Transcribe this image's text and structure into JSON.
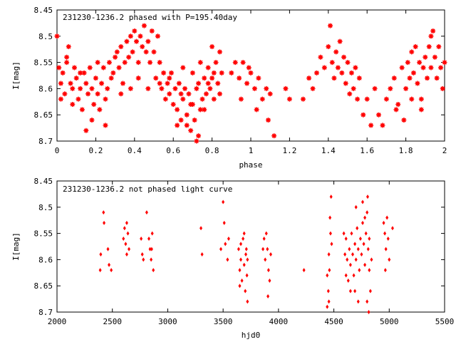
{
  "chart_data": [
    {
      "type": "scatter",
      "title": "231230-1236.2 phased with P=195.40day",
      "xlabel": "phase",
      "ylabel": "I[mag]",
      "xlim": [
        0,
        2
      ],
      "ylim": [
        8.7,
        8.45
      ],
      "y_reversed": true,
      "x_ticks": [
        0,
        0.2,
        0.4,
        0.6,
        0.8,
        1,
        1.2,
        1.4,
        1.6,
        1.8,
        2
      ],
      "x_tick_labels": [
        "0",
        "0.2",
        "0.4",
        "0.6",
        "0.8",
        "1",
        "1.2",
        "1.4",
        "1.6",
        "1.8",
        "2"
      ],
      "y_ticks": [
        8.45,
        8.5,
        8.55,
        8.6,
        8.65,
        8.7
      ],
      "y_tick_labels": [
        "8.45",
        "8.5",
        "8.55",
        "8.6",
        "8.65",
        "8.7"
      ],
      "marker": "asterisk",
      "color": "#ff0000",
      "points": [
        [
          0.0,
          8.5
        ],
        [
          0.01,
          8.56
        ],
        [
          0.02,
          8.59
        ],
        [
          0.03,
          8.57
        ],
        [
          0.04,
          8.61
        ],
        [
          0.05,
          8.55
        ],
        [
          0.06,
          8.52
        ],
        [
          0.07,
          8.59
        ],
        [
          0.08,
          8.63
        ],
        [
          0.09,
          8.56
        ],
        [
          0.1,
          8.58
        ],
        [
          0.11,
          8.62
        ],
        [
          0.12,
          8.6
        ],
        [
          0.13,
          8.64
        ],
        [
          0.14,
          8.57
        ],
        [
          0.15,
          8.59
        ],
        [
          0.16,
          8.61
        ],
        [
          0.17,
          8.56
        ],
        [
          0.18,
          8.6
        ],
        [
          0.19,
          8.63
        ],
        [
          0.2,
          8.58
        ],
        [
          0.21,
          8.61
        ],
        [
          0.22,
          8.64
        ],
        [
          0.23,
          8.59
        ],
        [
          0.24,
          8.56
        ],
        [
          0.25,
          8.62
        ],
        [
          0.26,
          8.6
        ],
        [
          0.27,
          8.55
        ],
        [
          0.28,
          8.58
        ],
        [
          0.29,
          8.57
        ],
        [
          0.15,
          8.68
        ],
        [
          0.25,
          8.67
        ],
        [
          0.05,
          8.54
        ],
        [
          0.12,
          8.57
        ],
        [
          0.02,
          8.62
        ],
        [
          0.18,
          8.66
        ],
        [
          0.08,
          8.6
        ],
        [
          0.21,
          8.55
        ],
        [
          0.3,
          8.54
        ],
        [
          0.31,
          8.53
        ],
        [
          0.32,
          8.56
        ],
        [
          0.33,
          8.52
        ],
        [
          0.34,
          8.59
        ],
        [
          0.35,
          8.55
        ],
        [
          0.36,
          8.51
        ],
        [
          0.37,
          8.54
        ],
        [
          0.38,
          8.5
        ],
        [
          0.39,
          8.53
        ],
        [
          0.4,
          8.49
        ],
        [
          0.41,
          8.51
        ],
        [
          0.42,
          8.55
        ],
        [
          0.43,
          8.5
        ],
        [
          0.44,
          8.52
        ],
        [
          0.45,
          8.48
        ],
        [
          0.46,
          8.53
        ],
        [
          0.47,
          8.51
        ],
        [
          0.48,
          8.55
        ],
        [
          0.49,
          8.49
        ],
        [
          0.5,
          8.53
        ],
        [
          0.51,
          8.58
        ],
        [
          0.52,
          8.5
        ],
        [
          0.53,
          8.55
        ],
        [
          0.54,
          8.6
        ],
        [
          0.55,
          8.57
        ],
        [
          0.56,
          8.62
        ],
        [
          0.57,
          8.59
        ],
        [
          0.58,
          8.61
        ],
        [
          0.59,
          8.57
        ],
        [
          0.33,
          8.61
        ],
        [
          0.38,
          8.6
        ],
        [
          0.42,
          8.58
        ],
        [
          0.47,
          8.6
        ],
        [
          0.53,
          8.59
        ],
        [
          0.58,
          8.58
        ],
        [
          0.6,
          8.63
        ],
        [
          0.61,
          8.6
        ],
        [
          0.62,
          8.64
        ],
        [
          0.63,
          8.59
        ],
        [
          0.64,
          8.66
        ],
        [
          0.65,
          8.62
        ],
        [
          0.66,
          8.6
        ],
        [
          0.67,
          8.65
        ],
        [
          0.68,
          8.61
        ],
        [
          0.69,
          8.68
        ],
        [
          0.7,
          8.63
        ],
        [
          0.71,
          8.66
        ],
        [
          0.72,
          8.6
        ],
        [
          0.73,
          8.69
        ],
        [
          0.74,
          8.64
        ],
        [
          0.75,
          8.62
        ],
        [
          0.76,
          8.58
        ],
        [
          0.77,
          8.61
        ],
        [
          0.78,
          8.56
        ],
        [
          0.79,
          8.6
        ],
        [
          0.8,
          8.58
        ],
        [
          0.81,
          8.62
        ],
        [
          0.82,
          8.55
        ],
        [
          0.83,
          8.59
        ],
        [
          0.84,
          8.53
        ],
        [
          0.85,
          8.57
        ],
        [
          0.65,
          8.56
        ],
        [
          0.7,
          8.57
        ],
        [
          0.72,
          8.7
        ],
        [
          0.67,
          8.67
        ],
        [
          0.74,
          8.55
        ],
        [
          0.78,
          8.59
        ],
        [
          0.8,
          8.52
        ],
        [
          0.62,
          8.67
        ],
        [
          0.76,
          8.64
        ],
        [
          0.84,
          8.61
        ],
        [
          0.69,
          8.63
        ],
        [
          0.73,
          8.59
        ],
        [
          0.81,
          8.57
        ],
        [
          0.64,
          8.61
        ],
        [
          0.9,
          8.57
        ],
        [
          0.92,
          8.55
        ],
        [
          0.94,
          8.58
        ],
        [
          0.96,
          8.55
        ],
        [
          0.98,
          8.59
        ],
        [
          1.0,
          8.57
        ],
        [
          1.02,
          8.6
        ],
        [
          1.04,
          8.58
        ],
        [
          1.06,
          8.62
        ],
        [
          1.08,
          8.6
        ],
        [
          1.1,
          8.61
        ],
        [
          0.95,
          8.62
        ],
        [
          1.03,
          8.64
        ],
        [
          1.09,
          8.66
        ],
        [
          1.12,
          8.69
        ],
        [
          1.18,
          8.6
        ],
        [
          1.2,
          8.62
        ],
        [
          0.99,
          8.56
        ],
        [
          1.27,
          8.62
        ],
        [
          1.3,
          8.58
        ],
        [
          1.32,
          8.6
        ],
        [
          1.34,
          8.57
        ],
        [
          1.36,
          8.54
        ],
        [
          1.38,
          8.56
        ],
        [
          1.4,
          8.52
        ],
        [
          1.41,
          8.48
        ],
        [
          1.42,
          8.55
        ],
        [
          1.43,
          8.58
        ],
        [
          1.44,
          8.53
        ],
        [
          1.45,
          8.56
        ],
        [
          1.46,
          8.51
        ],
        [
          1.47,
          8.57
        ],
        [
          1.48,
          8.54
        ],
        [
          1.49,
          8.59
        ],
        [
          1.5,
          8.55
        ],
        [
          1.51,
          8.61
        ],
        [
          1.52,
          8.57
        ],
        [
          1.53,
          8.6
        ],
        [
          1.54,
          8.56
        ],
        [
          1.55,
          8.62
        ],
        [
          1.56,
          8.58
        ],
        [
          1.58,
          8.65
        ],
        [
          1.6,
          8.62
        ],
        [
          1.62,
          8.67
        ],
        [
          1.64,
          8.6
        ],
        [
          1.66,
          8.65
        ],
        [
          1.68,
          8.67
        ],
        [
          1.7,
          8.62
        ],
        [
          1.72,
          8.6
        ],
        [
          1.74,
          8.58
        ],
        [
          1.76,
          8.63
        ],
        [
          1.78,
          8.56
        ],
        [
          1.79,
          8.66
        ],
        [
          1.8,
          8.6
        ],
        [
          1.81,
          8.55
        ],
        [
          1.82,
          8.58
        ],
        [
          1.83,
          8.53
        ],
        [
          1.84,
          8.57
        ],
        [
          1.85,
          8.52
        ],
        [
          1.86,
          8.59
        ],
        [
          1.87,
          8.55
        ],
        [
          1.88,
          8.62
        ],
        [
          1.89,
          8.56
        ],
        [
          1.9,
          8.54
        ],
        [
          1.91,
          8.58
        ],
        [
          1.92,
          8.52
        ],
        [
          1.93,
          8.56
        ],
        [
          1.94,
          8.49
        ],
        [
          1.95,
          8.54
        ],
        [
          1.96,
          8.58
        ],
        [
          1.97,
          8.52
        ],
        [
          1.98,
          8.56
        ],
        [
          1.99,
          8.6
        ],
        [
          2.0,
          8.55
        ],
        [
          1.93,
          8.5
        ],
        [
          1.88,
          8.64
        ],
        [
          1.75,
          8.64
        ],
        [
          1.83,
          8.62
        ]
      ]
    },
    {
      "type": "scatter",
      "title": "231230-1236.2 not phased light curve",
      "xlabel": "hjd0",
      "ylabel": "I[mag]",
      "xlim": [
        2000,
        5500
      ],
      "ylim": [
        8.7,
        8.45
      ],
      "y_reversed": true,
      "x_ticks": [
        2000,
        2500,
        3000,
        3500,
        4000,
        4500,
        5000,
        5500
      ],
      "x_tick_labels": [
        "2000",
        "2500",
        "3000",
        "3500",
        "4000",
        "4500",
        "5000",
        "5500"
      ],
      "y_ticks": [
        8.45,
        8.5,
        8.55,
        8.6,
        8.65,
        8.7
      ],
      "y_tick_labels": [
        "8.45",
        "8.5",
        "8.55",
        "8.6",
        "8.65",
        "8.7"
      ],
      "marker": "diamond",
      "color": "#ff0000",
      "points": [
        [
          2390,
          8.62
        ],
        [
          2395,
          8.59
        ],
        [
          2420,
          8.51
        ],
        [
          2425,
          8.53
        ],
        [
          2460,
          8.58
        ],
        [
          2470,
          8.61
        ],
        [
          2490,
          8.62
        ],
        [
          2600,
          8.56
        ],
        [
          2610,
          8.54
        ],
        [
          2620,
          8.57
        ],
        [
          2630,
          8.53
        ],
        [
          2640,
          8.55
        ],
        [
          2650,
          8.58
        ],
        [
          2630,
          8.59
        ],
        [
          2760,
          8.56
        ],
        [
          2770,
          8.59
        ],
        [
          2780,
          8.6
        ],
        [
          2810,
          8.51
        ],
        [
          2830,
          8.56
        ],
        [
          2840,
          8.58
        ],
        [
          2850,
          8.6
        ],
        [
          2860,
          8.55
        ],
        [
          2870,
          8.62
        ],
        [
          2855,
          8.58
        ],
        [
          3300,
          8.54
        ],
        [
          3310,
          8.59
        ],
        [
          3480,
          8.58
        ],
        [
          3500,
          8.49
        ],
        [
          3510,
          8.53
        ],
        [
          3520,
          8.57
        ],
        [
          3540,
          8.6
        ],
        [
          3550,
          8.56
        ],
        [
          3640,
          8.58
        ],
        [
          3650,
          8.62
        ],
        [
          3660,
          8.6
        ],
        [
          3670,
          8.64
        ],
        [
          3680,
          8.56
        ],
        [
          3690,
          8.61
        ],
        [
          3700,
          8.66
        ],
        [
          3710,
          8.58
        ],
        [
          3715,
          8.63
        ],
        [
          3720,
          8.68
        ],
        [
          3650,
          8.65
        ],
        [
          3660,
          8.57
        ],
        [
          3690,
          8.55
        ],
        [
          3705,
          8.59
        ],
        [
          3720,
          8.6
        ],
        [
          3860,
          8.58
        ],
        [
          3870,
          8.56
        ],
        [
          3880,
          8.6
        ],
        [
          3890,
          8.55
        ],
        [
          3900,
          8.58
        ],
        [
          3910,
          8.62
        ],
        [
          3920,
          8.64
        ],
        [
          3930,
          8.59
        ],
        [
          3905,
          8.67
        ],
        [
          4230,
          8.62
        ],
        [
          4440,
          8.63
        ],
        [
          4450,
          8.66
        ],
        [
          4455,
          8.59
        ],
        [
          4460,
          8.62
        ],
        [
          4465,
          8.52
        ],
        [
          4470,
          8.55
        ],
        [
          4475,
          8.48
        ],
        [
          4480,
          8.57
        ],
        [
          4440,
          8.69
        ],
        [
          4455,
          8.68
        ],
        [
          4590,
          8.55
        ],
        [
          4600,
          8.59
        ],
        [
          4610,
          8.56
        ],
        [
          4620,
          8.6
        ],
        [
          4630,
          8.64
        ],
        [
          4640,
          8.58
        ],
        [
          4650,
          8.61
        ],
        [
          4660,
          8.55
        ],
        [
          4670,
          8.59
        ],
        [
          4680,
          8.63
        ],
        [
          4690,
          8.57
        ],
        [
          4700,
          8.6
        ],
        [
          4710,
          8.54
        ],
        [
          4720,
          8.58
        ],
        [
          4730,
          8.62
        ],
        [
          4740,
          8.56
        ],
        [
          4750,
          8.59
        ],
        [
          4760,
          8.53
        ],
        [
          4770,
          8.57
        ],
        [
          4780,
          8.61
        ],
        [
          4790,
          8.55
        ],
        [
          4800,
          8.51
        ],
        [
          4810,
          8.58
        ],
        [
          4820,
          8.62
        ],
        [
          4830,
          8.66
        ],
        [
          4840,
          8.6
        ],
        [
          4610,
          8.63
        ],
        [
          4650,
          8.66
        ],
        [
          4700,
          8.5
        ],
        [
          4760,
          8.49
        ],
        [
          4805,
          8.48
        ],
        [
          4820,
          8.56
        ],
        [
          4690,
          8.66
        ],
        [
          4720,
          8.68
        ],
        [
          4780,
          8.52
        ],
        [
          4800,
          8.68
        ],
        [
          4815,
          8.7
        ],
        [
          4950,
          8.53
        ],
        [
          4960,
          8.55
        ],
        [
          4970,
          8.58
        ],
        [
          4980,
          8.52
        ],
        [
          4990,
          8.56
        ],
        [
          5000,
          8.6
        ],
        [
          5030,
          8.54
        ],
        [
          4965,
          8.62
        ]
      ]
    }
  ]
}
